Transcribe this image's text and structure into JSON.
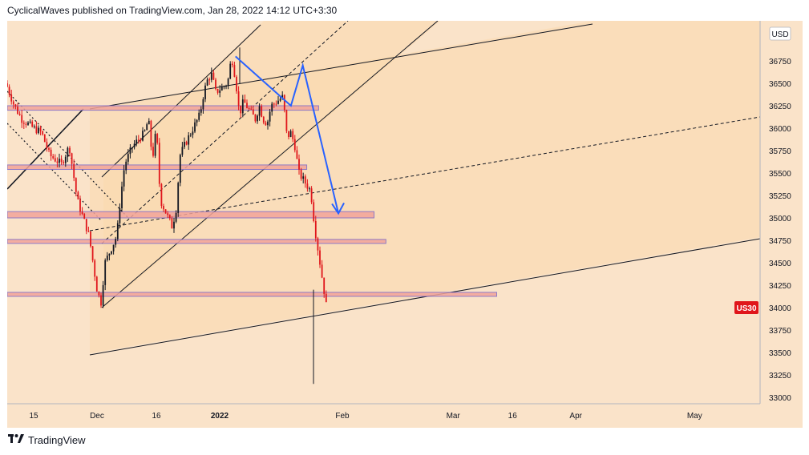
{
  "header": {
    "author": "CyclicalWaves",
    "text": "CyclicalWaves published on TradingView.com, Jan 28, 2022 14:12 UTC+3:30"
  },
  "footer": {
    "brand": "TradingView",
    "logo_icon": "tradingview-logo-icon"
  },
  "colors": {
    "background": "#fae3c9",
    "channel_fill": "#fad8ad",
    "zone_fill": "#f2a49a",
    "zone_border": "#7b68c8",
    "candle_up": "#131722",
    "candle_down": "#e0161b",
    "arrow": "#2962ff",
    "badge": "#e0161b"
  },
  "chart_data": {
    "type": "candlestick",
    "symbol": "US30",
    "currency": "USD",
    "last_price": 34000,
    "x_tick_labels": [
      "15",
      "Dec",
      "16",
      "2022",
      "Feb",
      "Mar",
      "16",
      "Apr",
      "May"
    ],
    "x_tick_dates": [
      "2021-11-15",
      "2021-12-01",
      "2021-12-16",
      "2022-01-01",
      "2022-02-01",
      "2022-03-01",
      "2022-03-16",
      "2022-04-01",
      "2022-05-01"
    ],
    "ylim": [
      32900,
      37300
    ],
    "y_ticks": [
      33000,
      33250,
      33500,
      33750,
      34000,
      34250,
      34500,
      34750,
      35000,
      35250,
      35500,
      35750,
      36000,
      36250,
      36500,
      36750
    ],
    "grid": false,
    "price_path": [
      [
        "2021-11-08",
        36500
      ],
      [
        "2021-11-10",
        36260
      ],
      [
        "2021-11-12",
        36100
      ],
      [
        "2021-11-15",
        36000
      ],
      [
        "2021-11-17",
        35950
      ],
      [
        "2021-11-19",
        35700
      ],
      [
        "2021-11-22",
        35600
      ],
      [
        "2021-11-24",
        35800
      ],
      [
        "2021-11-26",
        35200
      ],
      [
        "2021-11-29",
        34800
      ],
      [
        "2021-11-30",
        34500
      ],
      [
        "2021-12-01",
        34200
      ],
      [
        "2021-12-02",
        34050
      ],
      [
        "2021-12-03",
        34500
      ],
      [
        "2021-12-06",
        34800
      ],
      [
        "2021-12-07",
        35250
      ],
      [
        "2021-12-08",
        35600
      ],
      [
        "2021-12-09",
        35700
      ],
      [
        "2021-12-10",
        35800
      ],
      [
        "2021-12-13",
        35950
      ],
      [
        "2021-12-14",
        36100
      ],
      [
        "2021-12-15",
        35650
      ],
      [
        "2021-12-16",
        36000
      ],
      [
        "2021-12-17",
        35200
      ],
      [
        "2021-12-20",
        34900
      ],
      [
        "2021-12-21",
        35100
      ],
      [
        "2021-12-22",
        35700
      ],
      [
        "2021-12-23",
        35800
      ],
      [
        "2021-12-27",
        36150
      ],
      [
        "2021-12-28",
        36400
      ],
      [
        "2021-12-29",
        36550
      ],
      [
        "2021-12-30",
        36600
      ],
      [
        "2021-12-31",
        36400
      ],
      [
        "2022-01-03",
        36500
      ],
      [
        "2022-01-04",
        36800
      ],
      [
        "2022-01-05",
        36550
      ],
      [
        "2022-01-06",
        36150
      ],
      [
        "2022-01-07",
        36300
      ],
      [
        "2022-01-10",
        36100
      ],
      [
        "2022-01-11",
        36250
      ],
      [
        "2022-01-12",
        36100
      ],
      [
        "2022-01-13",
        36050
      ],
      [
        "2022-01-14",
        36250
      ],
      [
        "2022-01-17",
        36350
      ],
      [
        "2022-01-18",
        35900
      ],
      [
        "2022-01-19",
        35950
      ],
      [
        "2022-01-20",
        35800
      ],
      [
        "2022-01-21",
        35500
      ],
      [
        "2022-01-24",
        35300
      ],
      [
        "2022-01-25",
        34900
      ],
      [
        "2022-01-26",
        34600
      ],
      [
        "2022-01-27",
        34300
      ],
      [
        "2022-01-28",
        34000
      ]
    ],
    "highs_lows": {
      "swing_high": 36900,
      "swing_low_dec": 34000,
      "swing_low_jan": 33150
    },
    "annotations": {
      "resistance_zones": [
        {
          "price_low": 36200,
          "price_high": 36250,
          "from": "2021-11-08",
          "to": "2022-01-26"
        },
        {
          "price_low": 35540,
          "price_high": 35590,
          "from": "2021-11-08",
          "to": "2022-01-23"
        },
        {
          "price_low": 35000,
          "price_high": 35070,
          "from": "2021-11-08",
          "to": "2022-02-09"
        },
        {
          "price_low": 34720,
          "price_high": 34760,
          "from": "2021-11-08",
          "to": "2022-02-12"
        },
        {
          "price_low": 34130,
          "price_high": 34170,
          "from": "2021-11-08",
          "to": "2022-03-12"
        }
      ],
      "forecast_arrow": [
        [
          "2022-01-05",
          36800
        ],
        [
          "2022-01-19",
          36250
        ],
        [
          "2022-01-22",
          36700
        ],
        [
          "2022-01-31",
          35050
        ]
      ]
    }
  }
}
